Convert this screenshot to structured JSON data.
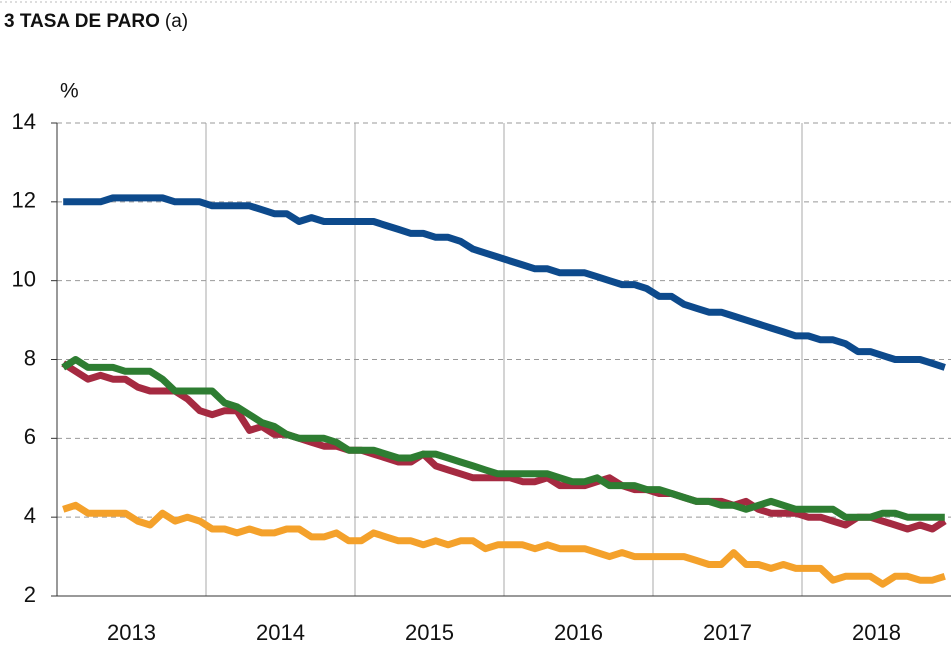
{
  "chart_data": {
    "type": "line",
    "title": "3  TASA DE PARO",
    "title_note": "(a)",
    "y_label": "%",
    "categories": [
      null,
      null,
      null,
      null,
      null,
      null,
      "2013",
      null,
      null,
      null,
      null,
      null,
      null,
      null,
      null,
      null,
      null,
      null,
      "2014",
      null,
      null,
      null,
      null,
      null,
      null,
      null,
      null,
      null,
      null,
      null,
      "2015",
      null,
      null,
      null,
      null,
      null,
      null,
      null,
      null,
      null,
      null,
      null,
      "2016",
      null,
      null,
      null,
      null,
      null,
      null,
      null,
      null,
      null,
      null,
      null,
      "2017",
      null,
      null,
      null,
      null,
      null,
      null,
      null,
      null,
      null,
      null,
      null,
      "2018",
      null,
      null,
      null,
      null,
      null
    ],
    "series": [
      {
        "color": "#0d4a8c",
        "values": [
          12.0,
          12.0,
          12.0,
          12.0,
          12.1,
          12.1,
          12.1,
          12.1,
          12.1,
          12.0,
          12.0,
          12.0,
          11.9,
          11.9,
          11.9,
          11.9,
          11.8,
          11.7,
          11.7,
          11.5,
          11.6,
          11.5,
          11.5,
          11.5,
          11.5,
          11.5,
          11.4,
          11.3,
          11.2,
          11.2,
          11.1,
          11.1,
          11.0,
          10.8,
          10.7,
          10.6,
          10.5,
          10.4,
          10.3,
          10.3,
          10.2,
          10.2,
          10.2,
          10.1,
          10.0,
          9.9,
          9.9,
          9.8,
          9.6,
          9.6,
          9.4,
          9.3,
          9.2,
          9.2,
          9.1,
          9.0,
          8.9,
          8.8,
          8.7,
          8.6,
          8.6,
          8.5,
          8.5,
          8.4,
          8.2,
          8.2,
          8.1,
          8.0,
          8.0,
          8.0,
          7.9,
          7.8
        ]
      },
      {
        "color": "#a52a41",
        "values": [
          7.9,
          7.7,
          7.5,
          7.6,
          7.5,
          7.5,
          7.3,
          7.2,
          7.2,
          7.2,
          7.0,
          6.7,
          6.6,
          6.7,
          6.7,
          6.2,
          6.3,
          6.1,
          6.1,
          6.0,
          5.9,
          5.8,
          5.8,
          5.7,
          5.7,
          5.6,
          5.5,
          5.4,
          5.4,
          5.6,
          5.3,
          5.2,
          5.1,
          5.0,
          5.0,
          5.0,
          5.0,
          4.9,
          4.9,
          5.0,
          4.8,
          4.8,
          4.8,
          4.9,
          5.0,
          4.8,
          4.7,
          4.7,
          4.6,
          4.6,
          4.5,
          4.4,
          4.4,
          4.4,
          4.3,
          4.4,
          4.2,
          4.1,
          4.1,
          4.1,
          4.0,
          4.0,
          3.9,
          3.8,
          4.0,
          4.0,
          3.9,
          3.8,
          3.7,
          3.8,
          3.7,
          3.9
        ]
      },
      {
        "color": "#2e7d32",
        "values": [
          7.8,
          8.0,
          7.8,
          7.8,
          7.8,
          7.7,
          7.7,
          7.7,
          7.5,
          7.2,
          7.2,
          7.2,
          7.2,
          6.9,
          6.8,
          6.6,
          6.4,
          6.3,
          6.1,
          6.0,
          6.0,
          6.0,
          5.9,
          5.7,
          5.7,
          5.7,
          5.6,
          5.5,
          5.5,
          5.6,
          5.6,
          5.5,
          5.4,
          5.3,
          5.2,
          5.1,
          5.1,
          5.1,
          5.1,
          5.1,
          5.0,
          4.9,
          4.9,
          5.0,
          4.8,
          4.8,
          4.8,
          4.7,
          4.7,
          4.6,
          4.5,
          4.4,
          4.4,
          4.3,
          4.3,
          4.2,
          4.3,
          4.4,
          4.3,
          4.2,
          4.2,
          4.2,
          4.2,
          4.0,
          4.0,
          4.0,
          4.1,
          4.1,
          4.0,
          4.0,
          4.0,
          4.0
        ]
      },
      {
        "color": "#f4a12b",
        "values": [
          4.2,
          4.3,
          4.1,
          4.1,
          4.1,
          4.1,
          3.9,
          3.8,
          4.1,
          3.9,
          4.0,
          3.9,
          3.7,
          3.7,
          3.6,
          3.7,
          3.6,
          3.6,
          3.7,
          3.7,
          3.5,
          3.5,
          3.6,
          3.4,
          3.4,
          3.6,
          3.5,
          3.4,
          3.4,
          3.3,
          3.4,
          3.3,
          3.4,
          3.4,
          3.2,
          3.3,
          3.3,
          3.3,
          3.2,
          3.3,
          3.2,
          3.2,
          3.2,
          3.1,
          3.0,
          3.1,
          3.0,
          3.0,
          3.0,
          3.0,
          3.0,
          2.9,
          2.8,
          2.8,
          3.1,
          2.8,
          2.8,
          2.7,
          2.8,
          2.7,
          2.7,
          2.7,
          2.4,
          2.5,
          2.5,
          2.5,
          2.3,
          2.5,
          2.5,
          2.4,
          2.4,
          2.5
        ]
      }
    ],
    "ylim": [
      2,
      14
    ],
    "yticks": [
      2,
      4,
      6,
      8,
      10,
      12,
      14
    ],
    "grid": true
  }
}
